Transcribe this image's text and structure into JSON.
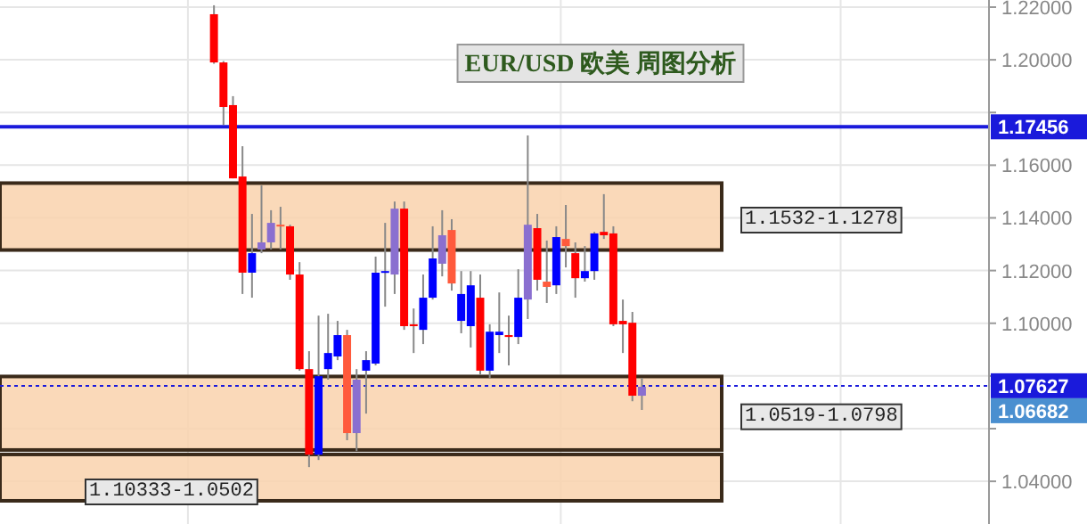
{
  "chart_data": {
    "type": "candlestick",
    "title": "EUR/USD 欧美 周图分析",
    "categories": [
      null,
      null,
      null,
      null,
      null,
      null,
      null,
      null,
      null,
      null,
      null,
      null,
      null,
      null,
      null,
      null,
      null,
      null,
      null,
      null,
      null,
      null,
      null,
      null,
      null,
      null,
      null,
      null,
      null,
      null,
      null,
      null,
      null,
      null,
      null,
      null,
      null,
      null,
      null,
      null,
      null,
      null,
      null,
      null,
      null,
      null,
      null,
      null,
      null,
      null,
      null,
      null,
      null,
      null,
      null,
      null,
      null,
      null,
      null,
      null,
      null,
      null,
      null,
      null,
      null,
      null,
      null,
      null,
      null,
      null,
      null,
      null,
      null,
      null,
      null,
      null,
      null,
      null,
      null,
      null,
      null,
      null,
      null,
      null,
      null,
      null,
      null,
      null,
      null,
      null,
      null,
      null,
      null,
      null,
      null,
      null,
      null,
      null,
      null,
      null,
      null,
      null,
      null,
      null
    ],
    "ohlc": [
      null,
      null,
      null,
      null,
      null,
      null,
      null,
      null,
      null,
      null,
      null,
      null,
      null,
      null,
      null,
      null,
      null,
      null,
      null,
      null,
      null,
      null,
      [
        1.2173,
        1.2207,
        1.1985,
        1.199
      ],
      [
        1.199,
        1.1995,
        1.1753,
        1.1821
      ],
      [
        1.1828,
        1.1862,
        1.155,
        1.155
      ],
      [
        1.1557,
        1.1672,
        1.1111,
        1.1192
      ],
      [
        1.1192,
        1.1415,
        1.1097,
        1.1266
      ],
      [
        1.128,
        1.1523,
        1.1266,
        1.1307
      ],
      [
        1.1307,
        1.1429,
        1.128,
        1.1381
      ],
      [
        1.1374,
        1.1442,
        1.128,
        1.1368
      ],
      [
        1.1368,
        1.1374,
        1.1165,
        1.1185
      ],
      [
        1.1185,
        1.1232,
        1.082,
        1.0826
      ],
      [
        1.0826,
        1.0894,
        1.0454,
        1.0501
      ],
      [
        1.0501,
        1.1029,
        1.0481,
        1.0799
      ],
      [
        1.0826,
        1.1036,
        1.0786,
        1.0887
      ],
      [
        1.0874,
        1.1009,
        1.086,
        1.0955
      ],
      [
        1.0955,
        1.0975,
        1.0556,
        1.0583
      ],
      [
        1.0583,
        1.0826,
        1.0515,
        1.0786
      ],
      [
        1.082,
        1.0894,
        1.0657,
        1.086
      ],
      [
        1.0847,
        1.1253,
        1.084,
        1.1192
      ],
      [
        1.1192,
        1.1381,
        1.1063,
        1.1198
      ],
      [
        1.1185,
        1.1462,
        1.1111,
        1.1435
      ],
      [
        1.1435,
        1.1462,
        1.0975,
        1.0989
      ],
      [
        1.0996,
        1.1056,
        1.0887,
        1.0989
      ],
      [
        1.0975,
        1.1185,
        1.0921,
        1.1097
      ],
      [
        1.1097,
        1.1368,
        1.109,
        1.1246
      ],
      [
        1.1226,
        1.1429,
        1.1178,
        1.1334
      ],
      [
        1.1354,
        1.1395,
        1.1124,
        1.1151
      ],
      [
        1.1009,
        1.1198,
        1.0962,
        1.1111
      ],
      [
        1.0989,
        1.1198,
        1.0908,
        1.1144
      ],
      [
        1.1097,
        1.1185,
        1.0806,
        1.082
      ],
      [
        1.082,
        1.0996,
        1.0792,
        1.0968
      ],
      [
        1.0955,
        1.1117,
        1.0887,
        1.0968
      ],
      [
        1.0955,
        1.1029,
        1.084,
        1.0948
      ],
      [
        1.0948,
        1.1205,
        1.0921,
        1.1097
      ],
      [
        1.109,
        1.1713,
        1.1016,
        1.1374
      ],
      [
        1.1361,
        1.1415,
        1.1124,
        1.1165
      ],
      [
        1.1158,
        1.1314,
        1.1077,
        1.1138
      ],
      [
        1.1144,
        1.1368,
        1.1111,
        1.1327
      ],
      [
        1.132,
        1.1449,
        1.1212,
        1.1293
      ],
      [
        1.1266,
        1.1307,
        1.1097,
        1.1171
      ],
      [
        1.1171,
        1.1293,
        1.1158,
        1.1198
      ],
      [
        1.1198,
        1.1347,
        1.1165,
        1.1341
      ],
      [
        1.1347,
        1.149,
        1.132,
        1.1334
      ],
      [
        1.1341,
        1.1368,
        1.0989,
        1.0996
      ],
      [
        1.1009,
        1.109,
        1.0887,
        1.0996
      ],
      [
        1.1002,
        1.1043,
        1.0704,
        1.0725
      ],
      [
        1.0725,
        1.0792,
        1.0671,
        1.0759
      ],
      null,
      null,
      null,
      null,
      null,
      null,
      null,
      null,
      null,
      null,
      null,
      null,
      null,
      null,
      null,
      null,
      null,
      null,
      null,
      null,
      null,
      null,
      null,
      null,
      null,
      null,
      null,
      null,
      null,
      null,
      null,
      null,
      null,
      null,
      null,
      null
    ],
    "colors": [
      null,
      null,
      null,
      null,
      null,
      null,
      null,
      null,
      null,
      null,
      null,
      null,
      null,
      null,
      null,
      null,
      null,
      null,
      null,
      null,
      null,
      null,
      "#ff0000",
      "#ff0000",
      "#ff0000",
      "#ff0000",
      "#0000ff",
      "#8a6fd0",
      "#8a6fd0",
      "#ff5a3c",
      "#ff0000",
      "#ff0000",
      "#ff0000",
      "#0000ff",
      "#0000ff",
      "#0000ff",
      "#ff5a3c",
      "#8a6fd0",
      "#0000ff",
      "#0000ff",
      "#0000ff",
      "#8a6fd0",
      "#ff0000",
      "#ff0000",
      "#0000ff",
      "#0000ff",
      "#8a6fd0",
      "#ff5a3c",
      "#0000ff",
      "#0000ff",
      "#ff0000",
      "#0000ff",
      "#0000ff",
      "#ff0000",
      "#0000ff",
      "#8a6fd0",
      "#ff0000",
      "#ff5a3c",
      "#0000ff",
      "#ff5a3c",
      "#ff0000",
      "#0000ff",
      "#0000ff",
      "#ff0000",
      "#ff0000",
      "#ff0000",
      "#ff0000",
      "#8a6fd0",
      null,
      null,
      null,
      null,
      null,
      null,
      null,
      null,
      null,
      null,
      null,
      null,
      null,
      null,
      null,
      null,
      null,
      null,
      null,
      null,
      null,
      null,
      null,
      null,
      null,
      null,
      null,
      null,
      null,
      null,
      null,
      null,
      null,
      null,
      null,
      null
    ],
    "ylim": [
      1.0238,
      1.2227
    ],
    "yticks": [
      {
        "value": 1.04,
        "label": "1.04000"
      },
      {
        "value": 1.06,
        "label": null
      },
      {
        "value": 1.08,
        "label": null
      },
      {
        "value": 1.1,
        "label": "1.10000"
      },
      {
        "value": 1.12,
        "label": "1.12000"
      },
      {
        "value": 1.14,
        "label": "1.14000"
      },
      {
        "value": 1.16,
        "label": "1.16000"
      },
      {
        "value": 1.18,
        "label": null
      },
      {
        "value": 1.2,
        "label": "1.20000"
      },
      {
        "value": 1.22,
        "label": "1.22000"
      }
    ],
    "grid": true,
    "ref_lines": [
      {
        "axis": "y",
        "value": 1.17456,
        "label": "1.17456",
        "color": "#1a1adb",
        "line_style": "solid"
      },
      {
        "axis": "y",
        "value": 1.07627,
        "label": "1.07627",
        "color": "#1a1adb",
        "line_style": "dotted"
      }
    ],
    "bands": [
      {
        "axis": "y",
        "from": 1.1278,
        "to": 1.1532,
        "label": "1.1532-1.1278",
        "color": "#f9d2ad"
      },
      {
        "axis": "y",
        "from": 1.0519,
        "to": 1.0798,
        "label": "1.0519-1.0798",
        "color": "#f9d2ad"
      },
      {
        "axis": "y",
        "from": 1.0326,
        "to": 1.0502,
        "label": "1.10333-1.0502",
        "color": "#f9d2ad"
      }
    ],
    "annotations": [
      "1.06682"
    ]
  }
}
